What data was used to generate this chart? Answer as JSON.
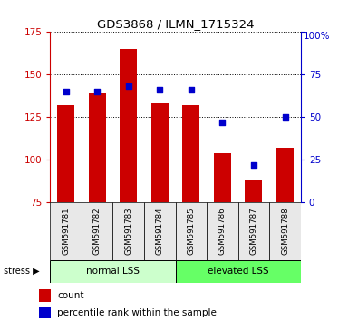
{
  "title": "GDS3868 / ILMN_1715324",
  "samples": [
    "GSM591781",
    "GSM591782",
    "GSM591783",
    "GSM591784",
    "GSM591785",
    "GSM591786",
    "GSM591787",
    "GSM591788"
  ],
  "counts": [
    132,
    139,
    165,
    133,
    132,
    104,
    88,
    107
  ],
  "percentiles": [
    65,
    65,
    68,
    66,
    66,
    47,
    22,
    50
  ],
  "ylim_left": [
    75,
    175
  ],
  "ylim_right": [
    0,
    100
  ],
  "yticks_left": [
    75,
    100,
    125,
    150,
    175
  ],
  "yticks_right": [
    0,
    25,
    50,
    75,
    100
  ],
  "bar_color": "#cc0000",
  "dot_color": "#0000cc",
  "bar_bottom": 75,
  "normal_lss_label": "normal LSS",
  "elevated_lss_label": "elevated LSS",
  "normal_lss_color": "#ccffcc",
  "elevated_lss_color": "#66ff66",
  "stress_label": "stress",
  "left_tick_color": "#cc0000",
  "right_tick_color": "#0000cc",
  "panel_bg": "#e8e8e8"
}
